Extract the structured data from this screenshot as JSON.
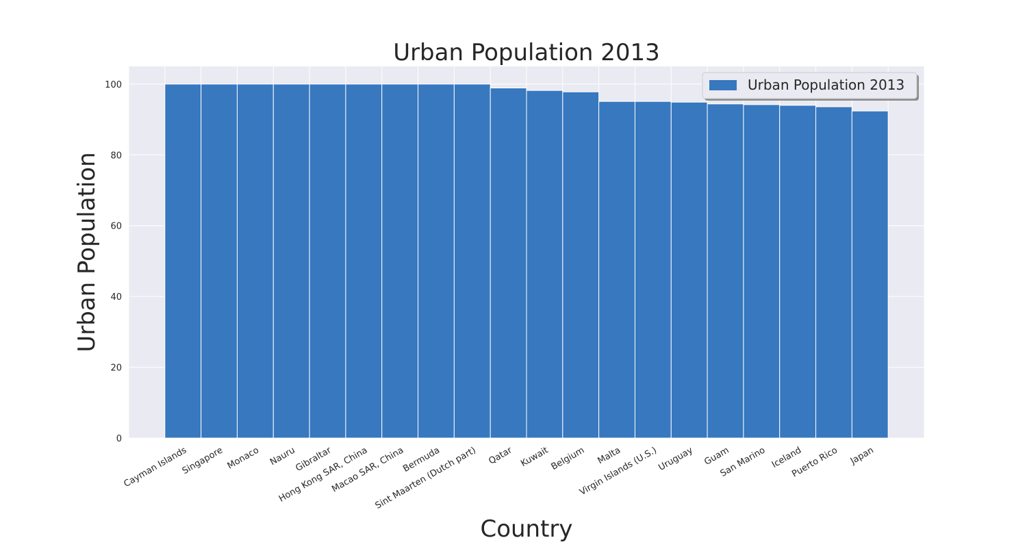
{
  "chart_data": {
    "type": "bar",
    "title": "Urban Population 2013",
    "xlabel": "Country",
    "ylabel": "Urban Population",
    "categories": [
      "Cayman Islands",
      "Singapore",
      "Monaco",
      "Nauru",
      "Gibraltar",
      "Hong Kong SAR, China",
      "Macao SAR, China",
      "Bermuda",
      "Sint Maarten (Dutch part)",
      "Qatar",
      "Kuwait",
      "Belgium",
      "Malta",
      "Virgin Islands (U.S.)",
      "Uruguay",
      "Guam",
      "San Marino",
      "Iceland",
      "Puerto Rico",
      "Japan"
    ],
    "series": [
      {
        "name": "Urban Population 2013",
        "color": "#3778bf",
        "values": [
          100,
          100,
          100,
          100,
          100,
          100,
          100,
          100,
          100,
          98.9,
          98.2,
          97.8,
          95.1,
          95.1,
          94.9,
          94.4,
          94.2,
          94.0,
          93.6,
          92.4
        ]
      }
    ],
    "ylim": [
      0,
      105
    ],
    "yticks": [
      0,
      20,
      40,
      60,
      80,
      100
    ],
    "grid": true,
    "legend_position": "top-right",
    "colors": {
      "plot_background": "#eaeaf2",
      "grid": "#ffffff",
      "bar": "#3778bf",
      "text": "#262626"
    }
  }
}
